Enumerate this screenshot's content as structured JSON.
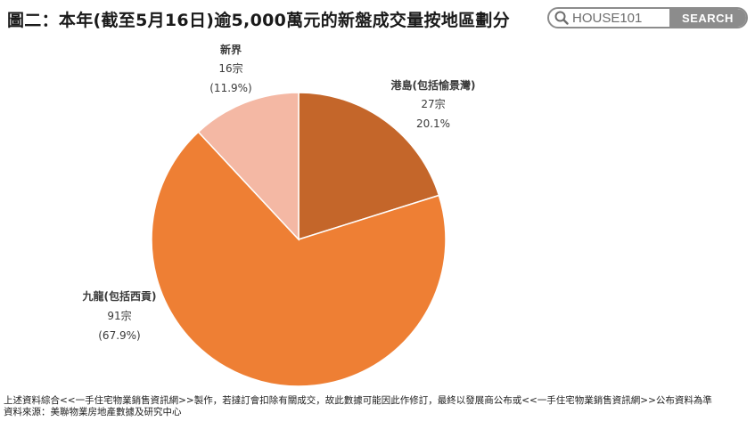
{
  "title": "圖二：本年(截至5月16日)逾5,000萬元的新盤成交量按地區劃分",
  "search": {
    "placeholder": "HOUSE101",
    "button_label": "SEARCH",
    "icon": "search-icon"
  },
  "chart_data": {
    "type": "pie",
    "slices": [
      {
        "label": "港島(包括愉景灣)",
        "count": "27宗",
        "percent_label": "20.1%",
        "value": 27,
        "percent": 20.1,
        "color": "#C4662A"
      },
      {
        "label": "九龍(包括西貢)",
        "count": "91宗",
        "percent_label": "(67.9%)",
        "value": 91,
        "percent": 67.9,
        "color": "#EE7F34"
      },
      {
        "label": "新界",
        "count": "16宗",
        "percent_label": "(11.9%)",
        "value": 16,
        "percent": 11.9,
        "color": "#F4B8A4"
      }
    ]
  },
  "footnote": {
    "line1": "上述資料綜合<<一手住宅物業銷售資訊網>>製作，若撻訂會扣除有關成交，故此數據可能因此作修訂，最終以發展商公布或<<一手住宅物業銷售資訊網>>公布資料為準",
    "line2": "資料來源：美聯物業房地產數據及研究中心"
  }
}
